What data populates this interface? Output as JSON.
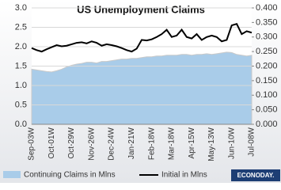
{
  "chart_data": {
    "type": "area-line",
    "title": "US Unemployment Claims",
    "categories": [
      "Sep-03W",
      null,
      null,
      null,
      "Oct-01W",
      null,
      null,
      null,
      "Oct-29W",
      null,
      null,
      null,
      "Nov-26W",
      null,
      null,
      null,
      "Dec-24W",
      null,
      null,
      null,
      "Jan-21W",
      null,
      null,
      null,
      "Feb-18W",
      null,
      null,
      null,
      "Mar-18W",
      null,
      null,
      null,
      "Apr-15W",
      null,
      null,
      null,
      "May-13W",
      null,
      null,
      null,
      "Jun-10W",
      null,
      null,
      null,
      "Jul-08W"
    ],
    "series": [
      {
        "name": "Continuing Claims in Mlns",
        "color": "#a9cce9",
        "kind": "area",
        "axis": "y",
        "values": [
          1.42,
          1.4,
          1.38,
          1.36,
          1.35,
          1.38,
          1.42,
          1.48,
          1.52,
          1.55,
          1.57,
          1.6,
          1.6,
          1.58,
          1.62,
          1.62,
          1.64,
          1.66,
          1.68,
          1.68,
          1.7,
          1.7,
          1.72,
          1.74,
          1.74,
          1.76,
          1.76,
          1.78,
          1.78,
          1.78,
          1.8,
          1.8,
          1.78,
          1.8,
          1.8,
          1.82,
          1.8,
          1.82,
          1.84,
          1.86,
          1.85,
          1.8,
          1.78,
          1.76,
          1.78
        ]
      },
      {
        "name": "Initial in Mlns",
        "color": "#000000",
        "kind": "line",
        "axis": "y2",
        "values": [
          0.262,
          0.255,
          0.25,
          0.258,
          0.265,
          0.272,
          0.268,
          0.27,
          0.275,
          0.28,
          0.282,
          0.278,
          0.285,
          0.28,
          0.27,
          0.275,
          0.272,
          0.268,
          0.262,
          0.255,
          0.25,
          0.26,
          0.29,
          0.288,
          0.292,
          0.3,
          0.31,
          0.325,
          0.3,
          0.305,
          0.325,
          0.3,
          0.295,
          0.31,
          0.29,
          0.3,
          0.305,
          0.3,
          0.285,
          0.29,
          0.34,
          0.345,
          0.31,
          0.32,
          0.315
        ]
      }
    ],
    "ylim": [
      0,
      3
    ],
    "yticks": [
      {
        "value": 0,
        "label": "0.0"
      },
      {
        "value": 0.5,
        "label": "0.5"
      },
      {
        "value": 1,
        "label": "1.0"
      },
      {
        "value": 1.5,
        "label": "1.5"
      },
      {
        "value": 2,
        "label": "2.0"
      },
      {
        "value": 2.5,
        "label": "2.5"
      },
      {
        "value": 3,
        "label": "3.0"
      }
    ],
    "y2lim": [
      0,
      0.4
    ],
    "y2ticks": [
      {
        "value": 0,
        "label": "0.000"
      },
      {
        "value": 0.05,
        "label": "0.050"
      },
      {
        "value": 0.1,
        "label": "0.100"
      },
      {
        "value": 0.15,
        "label": "0.150"
      },
      {
        "value": 0.2,
        "label": "0.200"
      },
      {
        "value": 0.25,
        "label": "0.250"
      },
      {
        "value": 0.3,
        "label": "0.300"
      },
      {
        "value": 0.35,
        "label": "0.350"
      },
      {
        "value": 0.4,
        "label": "0.400"
      }
    ],
    "grid": true,
    "logo": "ECONODAY."
  }
}
